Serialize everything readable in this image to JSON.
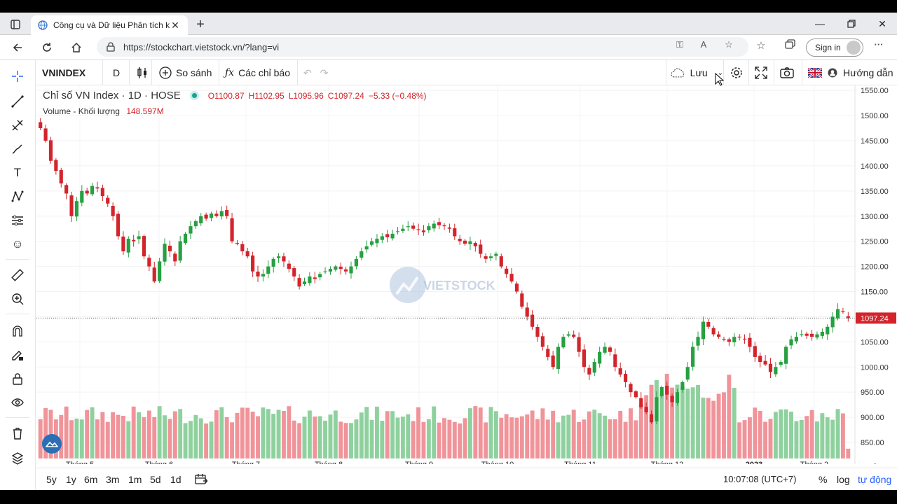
{
  "browser": {
    "tab_title": "Công cụ và Dữ liệu Phân tích kỹ t",
    "url": "https://stockchart.vietstock.vn/?lang=vi",
    "signin_label": "Sign in"
  },
  "toolbar": {
    "symbol": "VNINDEX",
    "interval": "D",
    "compare_label": "So sánh",
    "indicators_label": "Các chỉ báo",
    "save_label": "Lưu",
    "guide_label": "Hướng dẫn"
  },
  "legend": {
    "title": "Chỉ số VN Index · 1D · HOSE",
    "open": "O1100.87",
    "high": "H1102.95",
    "low": "L1095.96",
    "close": "C1097.24",
    "change": "−5.33 (−0.48%)",
    "volume_label": "Volume - Khối lượng",
    "volume_value": "148.597M"
  },
  "watermark": "VIETSTOCK",
  "bottom": {
    "ranges": [
      "5y",
      "1y",
      "6m",
      "3m",
      "1m",
      "5d",
      "1d"
    ],
    "time": "10:07:08 (UTC+7)",
    "percent": "%",
    "log": "log",
    "auto": "tự động"
  },
  "colors": {
    "up": "#26a041",
    "down": "#d3242b",
    "vol_up": "#8fd19e",
    "vol_down": "#f0949a",
    "accent": "#2962ff"
  },
  "chart_data": {
    "type": "candlestick",
    "y_ticks": [
      1550,
      1500,
      1450,
      1400,
      1350,
      1300,
      1250,
      1200,
      1150,
      1100,
      1050,
      1000,
      950,
      900,
      850
    ],
    "y_tick_labels": [
      "1550.00",
      "1500.00",
      "1450.00",
      "1400.00",
      "1350.00",
      "1300.00",
      "1250.00",
      "1200.00",
      "1150.00",
      "1100.00",
      "1050.00",
      "1000.00",
      "950.00",
      "900.00",
      "850.00"
    ],
    "ylim": [
      818,
      1560
    ],
    "x_labels": [
      "Tháng 5",
      "Tháng 6",
      "Tháng 7",
      "Tháng 8",
      "Tháng 9",
      "Tháng 10",
      "Tháng 11",
      "Tháng 12",
      "2023",
      "Tháng 2"
    ],
    "last_price_label": "1097.24",
    "last_price": 1097.24,
    "close_series": [
      1475,
      1450,
      1410,
      1390,
      1365,
      1345,
      1300,
      1330,
      1350,
      1345,
      1360,
      1355,
      1340,
      1325,
      1300,
      1260,
      1230,
      1255,
      1250,
      1260,
      1220,
      1200,
      1170,
      1210,
      1245,
      1230,
      1210,
      1250,
      1265,
      1280,
      1290,
      1300,
      1295,
      1305,
      1300,
      1310,
      1300,
      1250,
      1245,
      1230,
      1220,
      1190,
      1180,
      1185,
      1200,
      1215,
      1220,
      1210,
      1195,
      1180,
      1160,
      1170,
      1180,
      1175,
      1185,
      1190,
      1195,
      1200,
      1195,
      1190,
      1200,
      1215,
      1230,
      1240,
      1250,
      1255,
      1260,
      1258,
      1265,
      1270,
      1275,
      1280,
      1275,
      1272,
      1268,
      1280,
      1285,
      1282,
      1280,
      1275,
      1260,
      1250,
      1245,
      1250,
      1240,
      1225,
      1215,
      1220,
      1225,
      1200,
      1185,
      1170,
      1150,
      1120,
      1100,
      1080,
      1060,
      1040,
      1020,
      1000,
      1040,
      1060,
      1065,
      1060,
      1030,
      1000,
      985,
      1010,
      1030,
      1040,
      1030,
      1000,
      985,
      970,
      950,
      940,
      920,
      910,
      890,
      940,
      960,
      945,
      930,
      950,
      970,
      1000,
      1040,
      1060,
      1090,
      1080,
      1065,
      1060,
      1055,
      1050,
      1060,
      1060,
      1055,
      1040,
      1020,
      1010,
      1005,
      990,
      1000,
      1010,
      1040,
      1055,
      1060,
      1065,
      1062,
      1060,
      1065,
      1070,
      1080,
      1100,
      1115,
      1110,
      1097
    ]
  }
}
